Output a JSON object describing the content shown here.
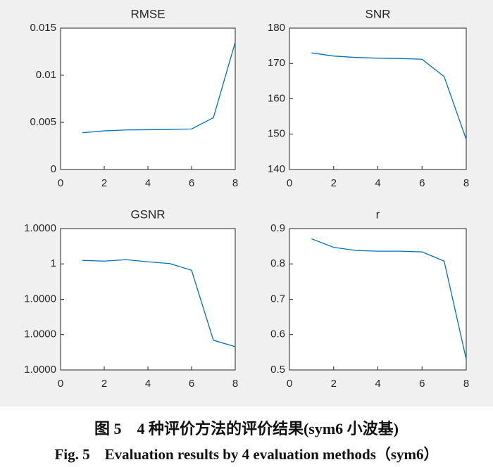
{
  "chart_data": [
    {
      "type": "line",
      "title": "RMSE",
      "x": [
        1,
        2,
        3,
        4,
        5,
        6,
        7,
        8
      ],
      "values": [
        0.0039,
        0.0041,
        0.0042,
        0.00422,
        0.00425,
        0.0043,
        0.0055,
        0.0135
      ],
      "color": "#0072bd",
      "xlim": [
        0,
        8
      ],
      "xticks": [
        0,
        2,
        4,
        6,
        8
      ],
      "ylim": [
        0,
        0.015
      ],
      "yticks": [
        0,
        0.005,
        0.01,
        0.015
      ]
    },
    {
      "type": "line",
      "title": "SNR",
      "x": [
        1,
        2,
        3,
        4,
        5,
        6,
        7,
        8
      ],
      "values": [
        173,
        172.1,
        171.7,
        171.5,
        171.4,
        171.2,
        166.3,
        148.5
      ],
      "color": "#0072bd",
      "xlim": [
        0,
        8
      ],
      "xticks": [
        0,
        2,
        4,
        6,
        8
      ],
      "ylim": [
        140,
        180
      ],
      "yticks": [
        140,
        150,
        160,
        170,
        180
      ]
    },
    {
      "type": "line",
      "title": "GSNR",
      "x": [
        1,
        2,
        3,
        4,
        5,
        6,
        7,
        8
      ],
      "values": [
        1.000001,
        1.0000008,
        1.0000012,
        1.0000006,
        1.0000001,
        0.9999982,
        0.9999784,
        0.9999766
      ],
      "color": "#0072bd",
      "xlim": [
        0,
        8
      ],
      "xticks": [
        0,
        2,
        4,
        6,
        8
      ],
      "ylim": [
        0.99997,
        1.00001
      ],
      "yticks": [
        {
          "value": 0.99997,
          "label": "1.0000"
        },
        {
          "value": 0.99998,
          "label": "1.0000"
        },
        {
          "value": 0.99999,
          "label": "1.0000"
        },
        1,
        {
          "value": 1.00001,
          "label": "1.0000"
        }
      ]
    },
    {
      "type": "line",
      "title": "r",
      "x": [
        1,
        2,
        3,
        4,
        5,
        6,
        7,
        8
      ],
      "values": [
        0.871,
        0.847,
        0.838,
        0.836,
        0.836,
        0.834,
        0.808,
        0.53
      ],
      "color": "#0072bd",
      "xlim": [
        0,
        8
      ],
      "xticks": [
        0,
        2,
        4,
        6,
        8
      ],
      "ylim": [
        0.5,
        0.9
      ],
      "yticks": [
        0.5,
        0.6,
        0.7,
        0.8,
        0.9
      ]
    }
  ],
  "caption": {
    "zh": "图 5　4 种评价方法的评价结果(sym6 小波基)",
    "en": "Fig. 5　Evaluation results by 4 evaluation methods（sym6）"
  }
}
